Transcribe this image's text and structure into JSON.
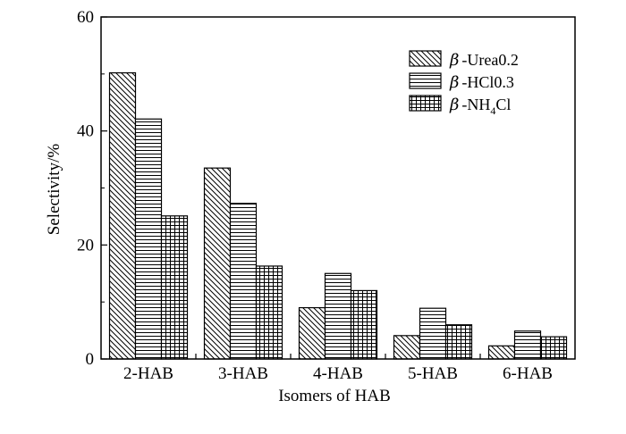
{
  "chart_data": {
    "type": "bar",
    "xlabel": "Isomers of HAB",
    "ylabel": "Selectivity/%",
    "categories": [
      "2-HAB",
      "3-HAB",
      "4-HAB",
      "5-HAB",
      "6-HAB"
    ],
    "ylim": [
      0,
      60
    ],
    "yticks": [
      0,
      20,
      40,
      60
    ],
    "grid": false,
    "legend_position": "top-right",
    "series": [
      {
        "name_prefix": "β",
        "name_main": "-Urea0.2",
        "pattern": "diagonal",
        "values": [
          50.2,
          33.5,
          9.0,
          4.1,
          2.3
        ]
      },
      {
        "name_prefix": "β",
        "name_main": "-HCl0.3",
        "pattern": "horizontal",
        "values": [
          42.1,
          27.3,
          15.0,
          8.9,
          4.9
        ]
      },
      {
        "name_prefix": "β",
        "name_main": "-NH",
        "name_sub": "4",
        "name_tail": "Cl",
        "pattern": "grid",
        "values": [
          25.1,
          16.3,
          12.0,
          6.0,
          3.9
        ]
      }
    ]
  }
}
